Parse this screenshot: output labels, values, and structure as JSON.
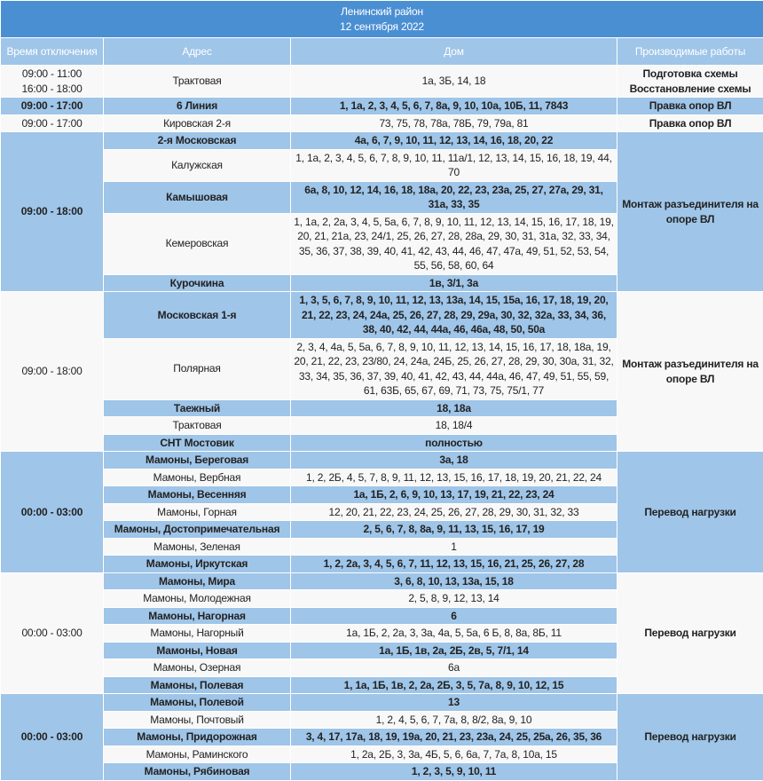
{
  "title": {
    "district": "Ленинский район",
    "date": "12 сентября 2022"
  },
  "columns": [
    "Время отключения",
    "Адрес",
    "Дом",
    "Производимые работы"
  ],
  "colors": {
    "title_bg": "#4b8fd3",
    "header_bg": "#9fc5e8",
    "row_blue": "#9fc5e8",
    "row_white": "#f8f8f8"
  },
  "groups": [
    {
      "time": [
        "09:00 - 11:00",
        "16:00 - 18:00"
      ],
      "work": [
        "Подготовка схемы",
        "Восстановление схемы"
      ],
      "shade": "white",
      "rows": [
        {
          "address": "Трактовая",
          "houses": "1а, 3Б, 14, 18"
        }
      ]
    },
    {
      "time": [
        "09:00 - 17:00"
      ],
      "work": [
        "Правка опор ВЛ"
      ],
      "shade": "blue",
      "rows": [
        {
          "address": "6 Линия",
          "houses": "1, 1а, 2, 3, 4, 5, 6, 7, 8а, 9, 10, 10а, 10Б, 11, 7843"
        }
      ]
    },
    {
      "time": [
        "09:00 - 17:00"
      ],
      "work": [
        "Правка опор ВЛ"
      ],
      "shade": "white",
      "rows": [
        {
          "address": "Кировская 2-я",
          "houses": "73, 75, 78, 78а, 78Б, 79, 79а, 81"
        }
      ]
    },
    {
      "time": [
        "09:00 - 18:00"
      ],
      "work": [
        "Монтаж разъединителя на опоре ВЛ"
      ],
      "shade": "blue",
      "rows": [
        {
          "address": "2-я Московская",
          "houses": "4а, 6, 7, 9, 10, 11, 12, 13, 14, 16, 18, 20, 22"
        },
        {
          "address": "Калужская",
          "houses": "1, 1а, 2, 3, 4, 5, 6, 7, 8, 9, 10, 11, 11а/1, 12, 13, 14, 15, 16, 18, 19, 44, 70"
        },
        {
          "address": "Камышовая",
          "houses": "6а, 8, 10, 12, 14, 16, 18, 18а, 20, 22, 23, 23а, 25, 27, 27а, 29, 31, 31а, 33, 35"
        },
        {
          "address": "Кемеровская",
          "houses": "1, 1а, 2, 2а, 3, 4, 5, 5а, 6, 7, 8, 9, 10, 11, 12, 13, 14, 15, 16, 17, 18, 19, 20, 21, 21а, 23, 24/1, 25, 26, 27, 28, 28а, 29, 30, 31, 31а, 32, 33, 34, 35, 36, 37, 38, 39, 40, 41, 42, 43, 44, 46, 47, 47а, 49, 51, 52, 53, 54, 55, 56, 58, 60, 64"
        },
        {
          "address": "Курочкина",
          "houses": "1в, 3/1, 3а"
        }
      ]
    },
    {
      "time": [
        "09:00 - 18:00"
      ],
      "work": [
        "Монтаж разъединителя на опоре ВЛ"
      ],
      "shade": "white",
      "rows": [
        {
          "address": "Московская 1-я",
          "houses": "1, 3, 5, 6, 7, 8, 9, 10, 11, 12, 13, 13а, 14, 15, 15а, 16, 17, 18, 19, 20, 21, 22, 23, 24, 24а, 25, 26, 27, 28, 29, 29а, 30, 32, 32а, 33, 34, 36, 38, 40, 42, 44, 44а, 46, 46а, 48, 50, 50а"
        },
        {
          "address": "Полярная",
          "houses": "2, 3, 4, 4а, 5, 5а, 6, 7, 8, 9, 10, 11, 12, 13, 14, 15, 16, 17, 18, 18а, 19, 20, 21, 22, 23, 23/80, 24, 24а, 24Б, 25, 26, 27, 28, 29, 30, 30а, 31, 32, 33, 34, 35, 36, 37, 39, 40, 41, 42, 43, 44, 44а, 46, 47, 49, 51, 55, 59, 61, 63Б, 65, 67, 69, 71, 73, 75, 75/1, 77"
        },
        {
          "address": "Таежный",
          "houses": "18, 18а"
        },
        {
          "address": "Трактовая",
          "houses": "18, 18/4"
        },
        {
          "address": "СНТ Мостовик",
          "houses": "полностью"
        }
      ]
    },
    {
      "time": [
        "00:00 - 03:00"
      ],
      "work": [
        "Перевод нагрузки"
      ],
      "shade": "blue",
      "rows": [
        {
          "address": "Мамоны, Береговая",
          "houses": "3а, 18"
        },
        {
          "address": "Мамоны, Вербная",
          "houses": "1, 2, 2Б, 4, 5, 7, 8, 9, 11, 12, 13, 15, 16, 17, 18, 19, 20, 21, 22, 24"
        },
        {
          "address": "Мамоны, Весенняя",
          "houses": "1а, 1Б, 2, 6, 9, 10, 13, 17, 19, 21, 22, 23, 24"
        },
        {
          "address": "Мамоны, Горная",
          "houses": "12, 20, 21, 22, 23, 24, 25, 26, 27, 28, 29, 30, 31, 32, 33"
        },
        {
          "address": "Мамоны, Достопримечательная",
          "houses": "2, 5, 6, 7, 8, 8а, 9, 11, 13, 15, 16, 17, 19"
        },
        {
          "address": "Мамоны, Зеленая",
          "houses": "1"
        },
        {
          "address": "Мамоны, Иркутская",
          "houses": "1, 2, 2а, 3, 4, 5, 6, 7, 11, 12, 13, 15, 16, 21, 25, 26, 27, 28"
        }
      ]
    },
    {
      "time": [
        "00:00 - 03:00"
      ],
      "work": [
        "Перевод нагрузки"
      ],
      "shade": "white",
      "rows": [
        {
          "address": "Мамоны, Мира",
          "houses": "3, 6, 8, 10, 13, 13а, 15, 18"
        },
        {
          "address": "Мамоны, Молодежная",
          "houses": "2, 5, 8, 9, 12, 13, 14"
        },
        {
          "address": "Мамоны, Нагорная",
          "houses": "6"
        },
        {
          "address": "Мамоны, Нагорный",
          "houses": "1а, 1Б, 2, 2а, 3, 3а, 4а, 5, 5а, 6 Б, 8, 8а, 8Б, 11"
        },
        {
          "address": "Мамоны, Новая",
          "houses": "1а, 1Б, 1в, 2а, 2Б, 2в, 5, 7/1, 14"
        },
        {
          "address": "Мамоны, Озерная",
          "houses": "6а"
        },
        {
          "address": "Мамоны, Полевая",
          "houses": "1, 1а, 1Б, 1в, 2, 2а, 2Б, 3, 5, 7а, 8, 9, 10, 12, 15"
        }
      ]
    },
    {
      "time": [
        "00:00 - 03:00"
      ],
      "work": [
        "Перевод нагрузки"
      ],
      "shade": "blue",
      "rows": [
        {
          "address": "Мамоны, Полевой",
          "houses": "13"
        },
        {
          "address": "Мамоны, Почтовый",
          "houses": "1, 2, 4, 5, 6, 7, 7а, 8, 8/2, 8а, 9, 10"
        },
        {
          "address": "Мамоны, Придорожная",
          "houses": "3, 4, 17, 17а, 18, 19, 19а, 20, 21, 23, 23а, 24, 25, 25а, 26, 35, 36"
        },
        {
          "address": "Мамоны, Раминского",
          "houses": "1, 2а, 2Б, 3, 3а, 4Б, 5, 6, 6а, 7, 7а, 8, 10а, 15"
        },
        {
          "address": "Мамоны, Рябиновая",
          "houses": "1, 2, 3, 5, 9, 10, 11"
        }
      ]
    }
  ]
}
